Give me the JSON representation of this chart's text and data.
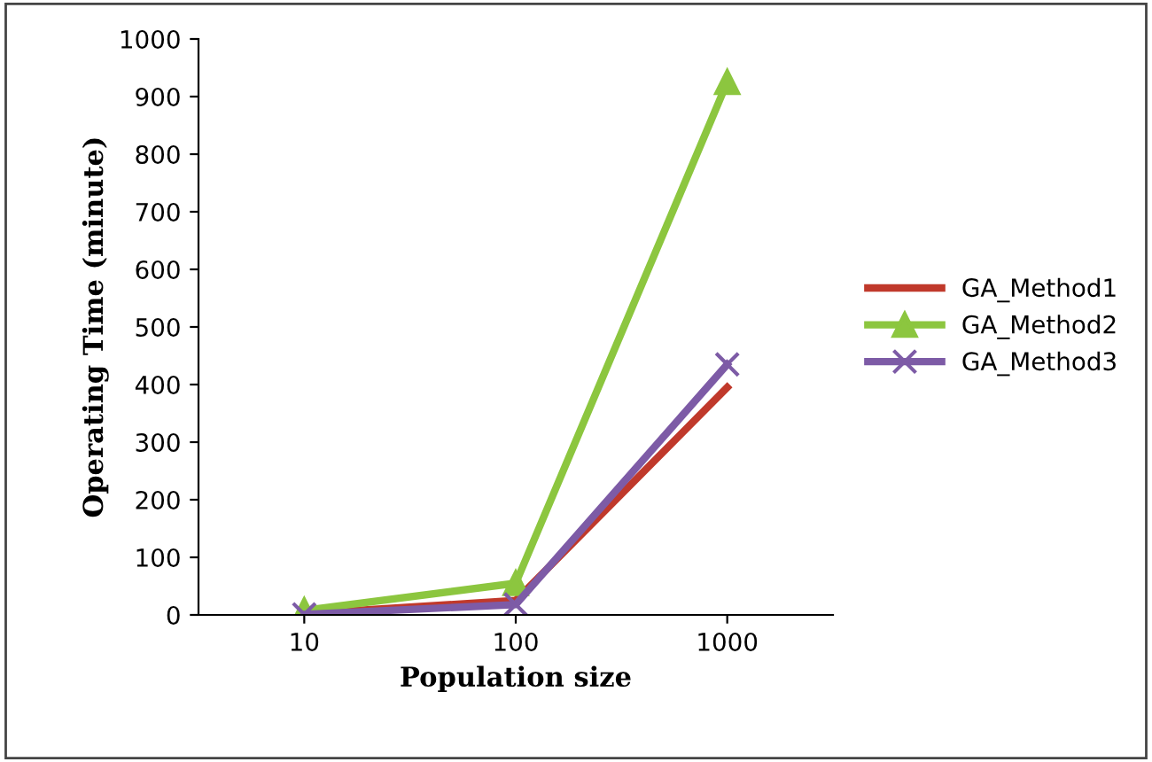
{
  "chart_data": {
    "type": "line",
    "xlabel": "Population size",
    "ylabel": "Operating Time (minute)",
    "categories": [
      "10",
      "100",
      "1000"
    ],
    "series": [
      {
        "name": "GA_Method1",
        "color": "#c0392b",
        "marker": "none",
        "values": [
          2,
          25,
          395
        ]
      },
      {
        "name": "GA_Method2",
        "color": "#8cc63f",
        "marker": "triangle",
        "values": [
          8,
          55,
          925
        ]
      },
      {
        "name": "GA_Method3",
        "color": "#7d5ba6",
        "marker": "cross",
        "values": [
          1,
          18,
          435
        ]
      }
    ],
    "ylim": [
      0,
      1000
    ],
    "yticks": [
      0,
      100,
      200,
      300,
      400,
      500,
      600,
      700,
      800,
      900,
      1000
    ],
    "grid": false,
    "legend": "right",
    "line_style": "solid"
  }
}
